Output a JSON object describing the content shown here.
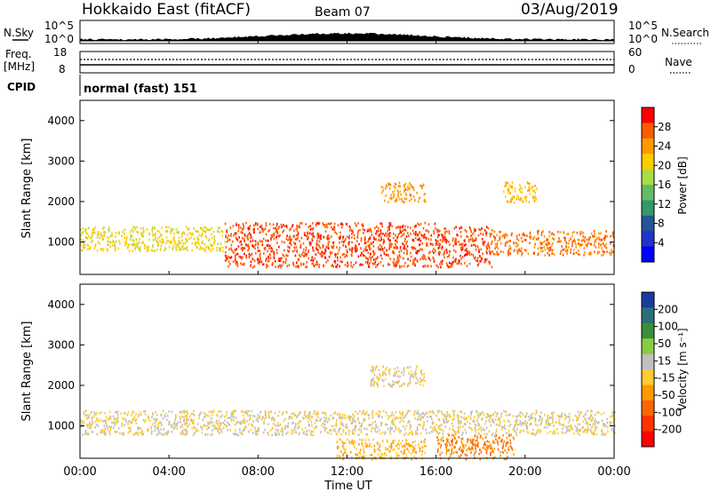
{
  "header": {
    "title": "Hokkaido East (fitACF)",
    "beam": "Beam 07",
    "date": "03/Aug/2019"
  },
  "noise_panel": {
    "left_label": "N.Sky",
    "right_label": "N.Search",
    "left_ticks": [
      "10^5",
      "10^0"
    ],
    "right_ticks": [
      "10^5",
      "10^0"
    ]
  },
  "freq_panel": {
    "left_label_line1": "Freq.",
    "left_label_line2": "[MHz]",
    "left_ticks": [
      "18",
      "8"
    ],
    "right_ticks": [
      "60",
      "0"
    ],
    "right_label": "Nave"
  },
  "cpid_panel": {
    "label": "CPID",
    "value": "normal (fast) 151"
  },
  "power_colorbar": {
    "label": "Power [dB]",
    "ticks": [
      "28",
      "24",
      "20",
      "16",
      "12",
      "8",
      "4"
    ],
    "colors": [
      "#ff0000",
      "#ff5a00",
      "#ff9900",
      "#ffcc00",
      "#aadd44",
      "#66bb66",
      "#339966",
      "#225599",
      "#2233cc",
      "#0000ff"
    ]
  },
  "velocity_colorbar": {
    "label": "Velocity [m s⁻¹]",
    "ticks": [
      "200",
      "100",
      "50",
      "15",
      "-15",
      "-50",
      "-100",
      "-200"
    ],
    "colors": [
      "#1a3aa0",
      "#2b6e7a",
      "#3a8f3a",
      "#88cc44",
      "#bfbfbf",
      "#ffcc33",
      "#ff9900",
      "#ff6600",
      "#ff3300",
      "#ff0000"
    ]
  },
  "x_axis": {
    "label": "Time UT",
    "ticks": [
      "00:00",
      "04:00",
      "08:00",
      "12:00",
      "16:00",
      "20:00",
      "00:00"
    ]
  },
  "y_axis": {
    "label": "Slant Range [km]",
    "ticks": [
      "4000",
      "3000",
      "2000",
      "1000"
    ]
  },
  "chart_data": {
    "type": "heatmap",
    "panels": [
      {
        "name": "Power",
        "colorbar_range": [
          0,
          32
        ],
        "ylim": [
          200,
          4500
        ],
        "bands": [
          {
            "t": [
              0.0,
              6.5
            ],
            "r": [
              800,
              1400
            ],
            "value": 20
          },
          {
            "t": [
              6.5,
              16.0
            ],
            "r": [
              400,
              1500
            ],
            "value": 28
          },
          {
            "t": [
              16.0,
              18.5
            ],
            "r": [
              400,
              1400
            ],
            "value": 28
          },
          {
            "t": [
              18.5,
              24.0
            ],
            "r": [
              700,
              1300
            ],
            "value": 26
          },
          {
            "t": [
              13.5,
              15.5
            ],
            "r": [
              2000,
              2500
            ],
            "value": 24
          },
          {
            "t": [
              19.0,
              20.5
            ],
            "r": [
              2000,
              2500
            ],
            "value": 22
          }
        ]
      },
      {
        "name": "Velocity",
        "colorbar_range": [
          -250,
          250
        ],
        "ylim": [
          200,
          4500
        ],
        "bands": [
          {
            "t": [
              0.0,
              24.0
            ],
            "r": [
              800,
              1400
            ],
            "value": 0
          },
          {
            "t": [
              11.5,
              15.5
            ],
            "r": [
              200,
              700
            ],
            "value": -50
          },
          {
            "t": [
              16.0,
              19.5
            ],
            "r": [
              200,
              800
            ],
            "value": -100
          },
          {
            "t": [
              13.0,
              15.5
            ],
            "r": [
              2000,
              2500
            ],
            "value": 0
          }
        ]
      }
    ],
    "xlim": [
      "00:00",
      "24:00"
    ],
    "noise_trace": "N.Sky",
    "freq_trace": "Freq. [MHz]",
    "nave_trace": "Nave"
  }
}
